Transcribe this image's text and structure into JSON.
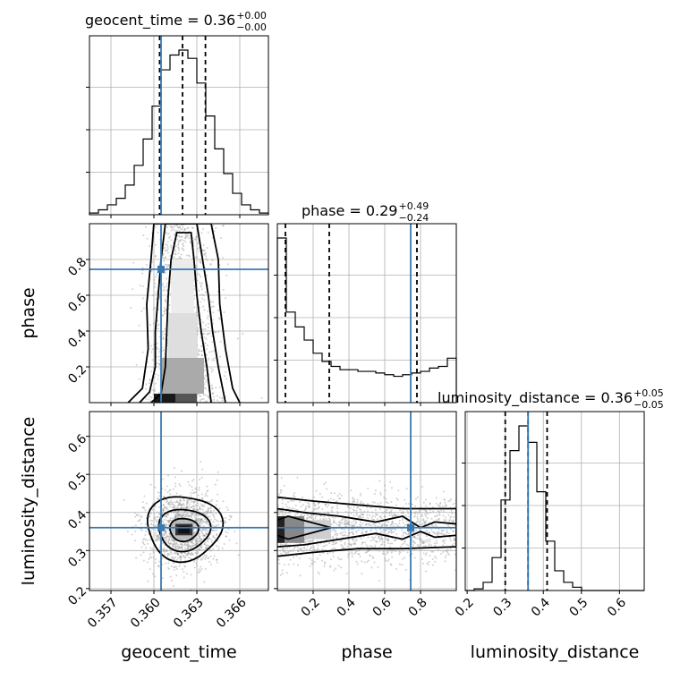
{
  "chart_data": {
    "type": "corner",
    "parameters": [
      "geocent_time",
      "phase",
      "luminosity_distance"
    ],
    "truth": {
      "geocent_time": 0.3605,
      "phase": 0.745,
      "luminosity_distance": 0.36
    },
    "titles": [
      {
        "param": "geocent_time",
        "main": "geocent_time = 0.36",
        "sup": "+0.00",
        "sub": "−0.00"
      },
      {
        "param": "phase",
        "main": "phase = 0.29",
        "sup": "+0.49",
        "sub": "−0.24"
      },
      {
        "param": "luminosity_distance",
        "main": "luminosity_distance = 0.36",
        "sup": "+0.05",
        "sub": "−0.05"
      }
    ],
    "axes": {
      "geocent_time": {
        "range": [
          0.3555,
          0.368
        ],
        "ticks": [
          0.357,
          0.36,
          0.363,
          0.366
        ],
        "tick_labels": [
          "0.357",
          "0.360",
          "0.363",
          "0.366"
        ]
      },
      "phase": {
        "range": [
          0.0,
          1.0
        ],
        "ticks": [
          0.2,
          0.4,
          0.6,
          0.8
        ],
        "tick_labels": [
          "0.2",
          "0.4",
          "0.6",
          "0.8"
        ]
      },
      "luminosity_distance": {
        "range": [
          0.195,
          0.665
        ],
        "ticks": [
          0.2,
          0.3,
          0.4,
          0.5,
          0.6
        ],
        "tick_labels": [
          "0.2",
          "0.3",
          "0.4",
          "0.5",
          "0.6"
        ]
      }
    },
    "diagonal": [
      {
        "param": "geocent_time",
        "quantiles": [
          0.3604,
          0.362,
          0.3636
        ],
        "hist": [
          0.01,
          0.03,
          0.06,
          0.1,
          0.18,
          0.3,
          0.46,
          0.66,
          0.88,
          0.97,
          1.0,
          0.95,
          0.8,
          0.6,
          0.4,
          0.25,
          0.13,
          0.06,
          0.03,
          0.01
        ]
      },
      {
        "param": "phase",
        "quantiles": [
          0.045,
          0.29,
          0.78
        ],
        "hist": [
          1.0,
          0.55,
          0.46,
          0.38,
          0.3,
          0.25,
          0.22,
          0.2,
          0.2,
          0.19,
          0.19,
          0.18,
          0.17,
          0.16,
          0.17,
          0.18,
          0.19,
          0.21,
          0.22,
          0.27
        ]
      },
      {
        "param": "luminosity_distance",
        "quantiles": [
          0.3,
          0.36,
          0.41
        ],
        "hist": [
          0.0,
          0.01,
          0.05,
          0.2,
          0.55,
          0.85,
          1.0,
          0.9,
          0.6,
          0.3,
          0.12,
          0.05,
          0.02,
          0.0,
          0.0,
          0.0,
          0.0,
          0.0,
          0.0,
          0.0
        ]
      }
    ],
    "grid": true
  }
}
